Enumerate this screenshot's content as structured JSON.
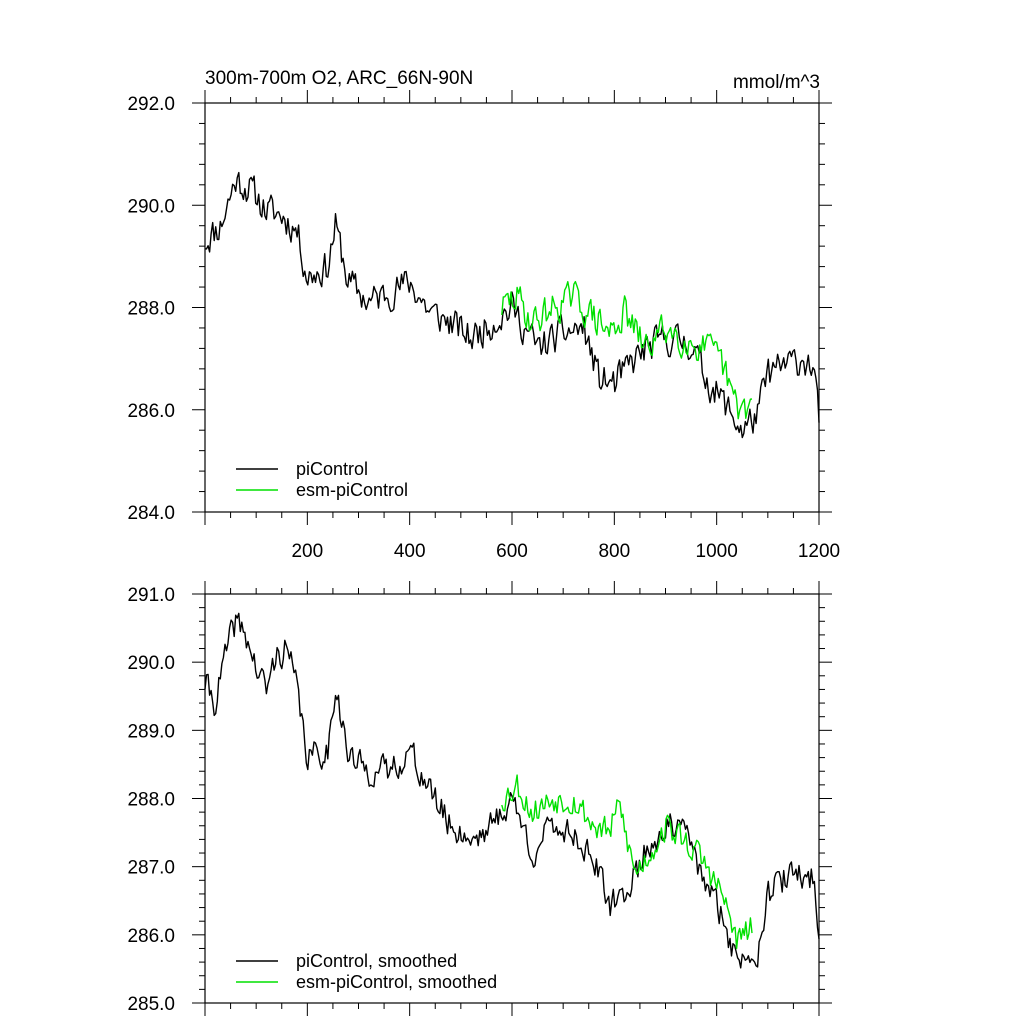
{
  "chart_data": [
    {
      "type": "line",
      "title": "300m-700m O2, ARC_66N-90N",
      "units": "mmol/m^3",
      "xlim": [
        0,
        1200
      ],
      "ylim": [
        284.0,
        292.0
      ],
      "xticks": [
        200,
        400,
        600,
        800,
        1000,
        1200
      ],
      "yticks": [
        "284.0",
        "286.0",
        "288.0",
        "290.0",
        "292.0"
      ],
      "legend": [
        "piControl",
        "esm-piControl"
      ],
      "legend_position": "bottom-left",
      "grid": false,
      "series": [
        {
          "name": "piControl",
          "color": "#000000",
          "noise": 0.45,
          "seed": 11,
          "knots": [
            [
              0,
              289.3
            ],
            [
              30,
              289.6
            ],
            [
              60,
              290.5
            ],
            [
              90,
              290.3
            ],
            [
              120,
              289.9
            ],
            [
              150,
              289.8
            ],
            [
              180,
              289.5
            ],
            [
              200,
              288.6
            ],
            [
              240,
              288.8
            ],
            [
              255,
              289.6
            ],
            [
              280,
              288.5
            ],
            [
              320,
              288.1
            ],
            [
              360,
              288.3
            ],
            [
              400,
              288.5
            ],
            [
              440,
              287.9
            ],
            [
              480,
              287.7
            ],
            [
              520,
              287.4
            ],
            [
              560,
              287.7
            ],
            [
              600,
              288.0
            ],
            [
              650,
              287.2
            ],
            [
              700,
              287.5
            ],
            [
              740,
              287.6
            ],
            [
              770,
              286.6
            ],
            [
              800,
              286.5
            ],
            [
              850,
              287.1
            ],
            [
              900,
              287.4
            ],
            [
              950,
              287.3
            ],
            [
              980,
              286.6
            ],
            [
              1010,
              286.2
            ],
            [
              1050,
              285.6
            ],
            [
              1080,
              285.9
            ],
            [
              1100,
              286.7
            ],
            [
              1140,
              286.9
            ],
            [
              1170,
              287.0
            ],
            [
              1190,
              286.8
            ],
            [
              1200,
              285.7
            ]
          ]
        },
        {
          "name": "esm-piControl",
          "color": "#00e000",
          "noise": 0.45,
          "seed": 29,
          "knots": [
            [
              580,
              288.0
            ],
            [
              610,
              288.2
            ],
            [
              640,
              287.7
            ],
            [
              680,
              288.0
            ],
            [
              720,
              288.2
            ],
            [
              760,
              287.8
            ],
            [
              790,
              287.5
            ],
            [
              820,
              287.9
            ],
            [
              860,
              287.2
            ],
            [
              900,
              287.6
            ],
            [
              950,
              287.3
            ],
            [
              980,
              287.2
            ],
            [
              1010,
              286.9
            ],
            [
              1040,
              286.0
            ],
            [
              1070,
              286.1
            ]
          ]
        }
      ]
    },
    {
      "type": "line",
      "xlim": [
        0,
        1200
      ],
      "ylim": [
        285.0,
        291.0
      ],
      "yticks": [
        "285.0",
        "286.0",
        "287.0",
        "288.0",
        "289.0",
        "290.0",
        "291.0"
      ],
      "legend": [
        "piControl, smoothed",
        "esm-piControl, smoothed"
      ],
      "legend_position": "bottom-left",
      "grid": false,
      "series": [
        {
          "name": "piControl, smoothed",
          "color": "#000000",
          "noise": 0.3,
          "seed": 41,
          "knots": [
            [
              0,
              289.7
            ],
            [
              20,
              289.4
            ],
            [
              40,
              290.1
            ],
            [
              60,
              290.6
            ],
            [
              80,
              290.4
            ],
            [
              100,
              289.9
            ],
            [
              120,
              289.6
            ],
            [
              140,
              290.1
            ],
            [
              160,
              290.2
            ],
            [
              180,
              289.6
            ],
            [
              200,
              288.6
            ],
            [
              240,
              288.7
            ],
            [
              255,
              289.7
            ],
            [
              280,
              288.6
            ],
            [
              320,
              288.4
            ],
            [
              360,
              288.4
            ],
            [
              400,
              288.7
            ],
            [
              440,
              288.1
            ],
            [
              480,
              287.6
            ],
            [
              520,
              287.4
            ],
            [
              560,
              287.6
            ],
            [
              600,
              288.0
            ],
            [
              640,
              287.2
            ],
            [
              680,
              287.6
            ],
            [
              720,
              287.5
            ],
            [
              760,
              287.1
            ],
            [
              790,
              286.4
            ],
            [
              820,
              286.6
            ],
            [
              860,
              287.2
            ],
            [
              900,
              287.6
            ],
            [
              940,
              287.5
            ],
            [
              980,
              286.7
            ],
            [
              1010,
              286.3
            ],
            [
              1040,
              285.6
            ],
            [
              1080,
              285.8
            ],
            [
              1100,
              286.6
            ],
            [
              1130,
              286.8
            ],
            [
              1160,
              286.9
            ],
            [
              1190,
              286.8
            ],
            [
              1200,
              286.1
            ]
          ]
        },
        {
          "name": "esm-piControl, smoothed",
          "color": "#00e000",
          "noise": 0.3,
          "seed": 53,
          "knots": [
            [
              580,
              288.0
            ],
            [
              610,
              288.2
            ],
            [
              640,
              287.8
            ],
            [
              680,
              288.0
            ],
            [
              720,
              288.0
            ],
            [
              760,
              287.6
            ],
            [
              790,
              287.5
            ],
            [
              810,
              287.9
            ],
            [
              840,
              286.9
            ],
            [
              870,
              287.2
            ],
            [
              900,
              287.6
            ],
            [
              950,
              287.3
            ],
            [
              980,
              287.0
            ],
            [
              1010,
              286.6
            ],
            [
              1040,
              285.9
            ],
            [
              1070,
              286.1
            ]
          ]
        }
      ]
    }
  ]
}
